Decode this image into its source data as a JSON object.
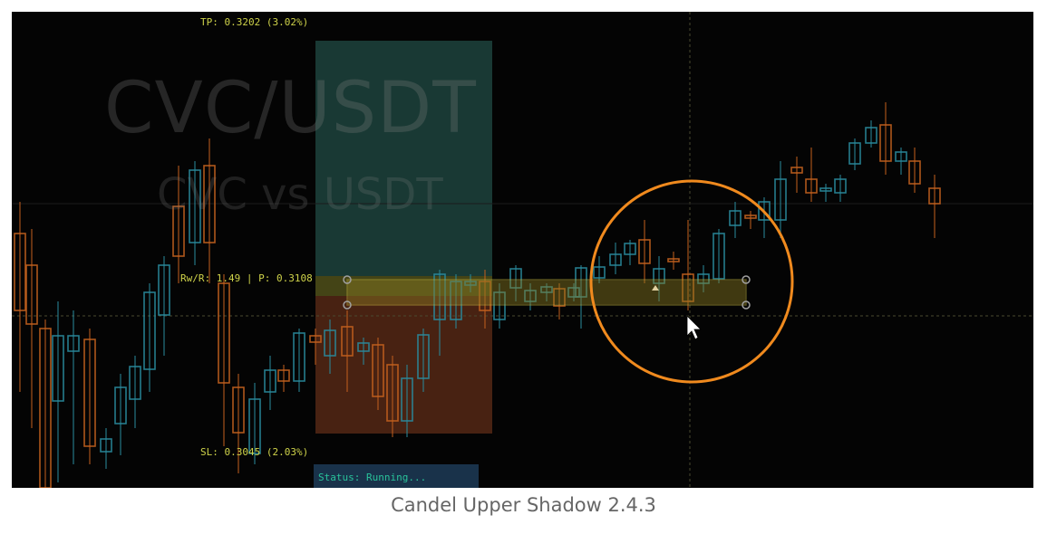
{
  "chart": {
    "watermark_pair": "CVC/USDT",
    "watermark_sub": "CVC vs USDT",
    "tp_label": "TP: 0.3202 (3.02%)",
    "rr_label": "Rw/R: 1.49 | P: 0.3108",
    "sl_label": "SL: 0.3045 (2.03%)",
    "status_label": "Status: Running...",
    "colors": {
      "background": "#040404",
      "bull": "#2a8a9c",
      "bear": "#c2601e",
      "profit_zone": "#2e6d63",
      "loss_zone": "#5a2a16",
      "entry_box": "#b8a83a",
      "highlight_circle": "#f08a1e",
      "label_text": "#cfd34a"
    }
  },
  "caption": "Candel Upper Shadow 2.4.3"
}
